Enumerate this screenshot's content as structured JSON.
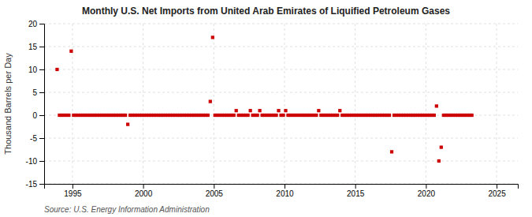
{
  "chart_data": {
    "type": "scatter",
    "title": "Monthly U.S. Net Imports from United Arab Emirates of Liquified Petroleum Gases",
    "ylabel": "Thousand Barrels per Day",
    "source": "Source: U.S. Energy Information Administration",
    "color": "#cc0000",
    "marker": "square",
    "grid": true,
    "xlim": [
      1993.0,
      2026.5
    ],
    "ylim": [
      -15,
      20
    ],
    "xticks": [
      1995,
      2000,
      2005,
      2010,
      2015,
      2020,
      2025
    ],
    "yticks": [
      -15,
      -10,
      -5,
      0,
      5,
      10,
      15,
      20
    ],
    "x": [
      1993.917,
      1994.083,
      1994.25,
      1994.417,
      1994.583,
      1994.75,
      1994.917,
      1995.083,
      1995.25,
      1995.417,
      1995.583,
      1995.75,
      1995.917,
      1996.083,
      1996.25,
      1996.417,
      1996.583,
      1996.75,
      1996.917,
      1997.083,
      1997.25,
      1997.417,
      1997.583,
      1997.75,
      1997.917,
      1998.083,
      1998.25,
      1998.417,
      1998.583,
      1998.75,
      1998.917,
      1999.083,
      1999.25,
      1999.417,
      1999.583,
      1999.75,
      1999.917,
      2000.083,
      2000.25,
      2000.417,
      2000.583,
      2000.75,
      2000.917,
      2001.083,
      2001.25,
      2001.417,
      2001.583,
      2001.75,
      2001.917,
      2002.083,
      2002.25,
      2002.417,
      2002.583,
      2002.75,
      2002.917,
      2003.083,
      2003.25,
      2003.417,
      2003.583,
      2003.75,
      2003.917,
      2004.083,
      2004.25,
      2004.417,
      2004.583,
      2004.75,
      2004.917,
      2005.083,
      2005.25,
      2005.417,
      2005.583,
      2005.75,
      2005.917,
      2006.083,
      2006.25,
      2006.417,
      2006.583,
      2006.75,
      2006.917,
      2007.083,
      2007.25,
      2007.417,
      2007.583,
      2007.75,
      2007.917,
      2008.083,
      2008.25,
      2008.417,
      2008.583,
      2008.75,
      2008.917,
      2009.083,
      2009.25,
      2009.417,
      2009.583,
      2009.75,
      2009.917,
      2010.083,
      2010.25,
      2010.417,
      2010.583,
      2010.75,
      2010.917,
      2011.083,
      2011.25,
      2011.417,
      2011.583,
      2011.75,
      2011.917,
      2012.083,
      2012.25,
      2012.417,
      2012.583,
      2012.75,
      2012.917,
      2013.083,
      2013.25,
      2013.417,
      2013.583,
      2013.75,
      2013.917,
      2014.083,
      2014.25,
      2014.417,
      2014.583,
      2014.75,
      2014.917,
      2015.083,
      2015.25,
      2015.417,
      2015.583,
      2015.75,
      2015.917,
      2016.083,
      2016.25,
      2016.417,
      2016.583,
      2016.75,
      2016.917,
      2017.083,
      2017.25,
      2017.417,
      2017.583,
      2017.75,
      2017.917,
      2018.083,
      2018.25,
      2018.417,
      2018.583,
      2018.75,
      2018.917,
      2019.083,
      2019.25,
      2019.417,
      2019.583,
      2019.75,
      2019.917,
      2020.083,
      2020.25,
      2020.417,
      2020.583,
      2020.75,
      2020.917,
      2021.083,
      2021.25,
      2021.417,
      2021.583,
      2021.75,
      2021.917,
      2022.083,
      2022.25,
      2022.417,
      2022.583,
      2022.75,
      2022.917,
      2023.083,
      2023.25
    ],
    "values": [
      10.0,
      0.0,
      0.0,
      0.0,
      0.0,
      0.0,
      14.0,
      0.0,
      0.0,
      0.0,
      0.0,
      0.0,
      0.0,
      0.0,
      0.0,
      0.0,
      0.0,
      0.0,
      0.0,
      0.0,
      0.0,
      0.0,
      0.0,
      0.0,
      0.0,
      0.0,
      0.0,
      0.0,
      0.0,
      0.0,
      -2.0,
      0.0,
      0.0,
      0.0,
      0.0,
      0.0,
      0.0,
      0.0,
      0.0,
      0.0,
      0.0,
      0.0,
      0.0,
      0.0,
      0.0,
      0.0,
      0.0,
      0.0,
      0.0,
      0.0,
      0.0,
      0.0,
      0.0,
      0.0,
      0.0,
      0.0,
      0.0,
      0.0,
      0.0,
      0.0,
      0.0,
      0.0,
      0.0,
      0.0,
      0.0,
      3.0,
      17.0,
      0.0,
      0.0,
      0.0,
      0.0,
      0.0,
      0.0,
      0.0,
      0.0,
      0.0,
      1.0,
      0.0,
      0.0,
      0.0,
      0.0,
      0.0,
      1.0,
      0.0,
      0.0,
      0.0,
      1.0,
      0.0,
      0.0,
      0.0,
      0.0,
      0.0,
      0.0,
      0.0,
      1.0,
      0.0,
      0.0,
      1.0,
      0.0,
      0.0,
      0.0,
      0.0,
      0.0,
      0.0,
      0.0,
      0.0,
      0.0,
      0.0,
      0.0,
      0.0,
      0.0,
      1.0,
      0.0,
      0.0,
      0.0,
      0.0,
      0.0,
      0.0,
      0.0,
      0.0,
      1.0,
      0.0,
      0.0,
      0.0,
      0.0,
      0.0,
      0.0,
      0.0,
      0.0,
      0.0,
      0.0,
      0.0,
      0.0,
      0.0,
      0.0,
      0.0,
      0.0,
      0.0,
      0.0,
      0.0,
      0.0,
      0.0,
      -8.0,
      0.0,
      0.0,
      0.0,
      0.0,
      0.0,
      0.0,
      0.0,
      0.0,
      0.0,
      0.0,
      0.0,
      0.0,
      0.0,
      0.0,
      0.0,
      0.0,
      0.0,
      0.0,
      2.0,
      -10.0,
      -7.0,
      0.0,
      0.0,
      0.0,
      0.0,
      0.0,
      0.0,
      0.0,
      0.0,
      0.0,
      0.0,
      0.0,
      0.0,
      0.0
    ]
  }
}
